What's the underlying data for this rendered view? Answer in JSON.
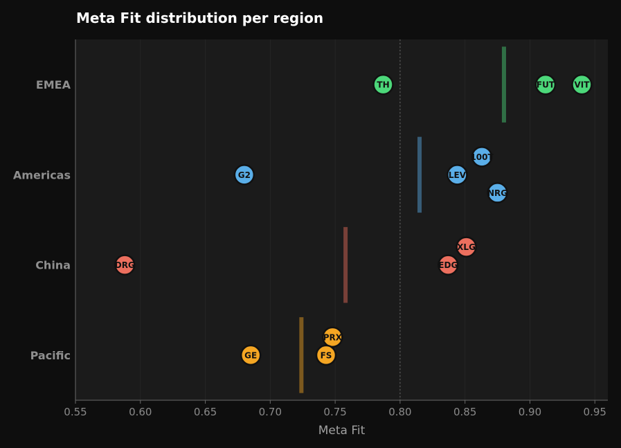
{
  "chart_data": {
    "type": "scatter",
    "title": "Meta Fit distribution per region",
    "xlabel": "Meta Fit",
    "ylabel": "",
    "xlim": [
      0.55,
      0.96
    ],
    "xticks": [
      "0.55",
      "0.60",
      "0.65",
      "0.70",
      "0.75",
      "0.80",
      "0.85",
      "0.90",
      "0.95"
    ],
    "reference_line": 0.8,
    "grid": true,
    "categories": [
      "EMEA",
      "Americas",
      "China",
      "Pacific"
    ],
    "series": [
      {
        "region": "EMEA",
        "color": "#4cd87a",
        "mean": 0.88,
        "points": [
          {
            "label": "TH",
            "x": 0.787,
            "offset": 0
          },
          {
            "label": "FUT",
            "x": 0.912,
            "offset": 0
          },
          {
            "label": "VIT",
            "x": 0.94,
            "offset": 0
          }
        ]
      },
      {
        "region": "Americas",
        "color": "#5aaee8",
        "mean": 0.815,
        "points": [
          {
            "label": "G2",
            "x": 0.68,
            "offset": 0
          },
          {
            "label": "100T",
            "x": 0.863,
            "offset": -0.2
          },
          {
            "label": "LEV",
            "x": 0.844,
            "offset": 0
          },
          {
            "label": "NRG",
            "x": 0.875,
            "offset": 0.2
          }
        ]
      },
      {
        "region": "China",
        "color": "#ec6f5e",
        "mean": 0.758,
        "points": [
          {
            "label": "DRG",
            "x": 0.588,
            "offset": 0
          },
          {
            "label": "XLG",
            "x": 0.851,
            "offset": -0.2
          },
          {
            "label": "EDG",
            "x": 0.837,
            "offset": 0
          }
        ]
      },
      {
        "region": "Pacific",
        "color": "#f5a623",
        "mean": 0.724,
        "points": [
          {
            "label": "PRX",
            "x": 0.748,
            "offset": -0.2
          },
          {
            "label": "GE",
            "x": 0.685,
            "offset": 0
          },
          {
            "label": "FS",
            "x": 0.743,
            "offset": 0
          }
        ]
      }
    ]
  }
}
